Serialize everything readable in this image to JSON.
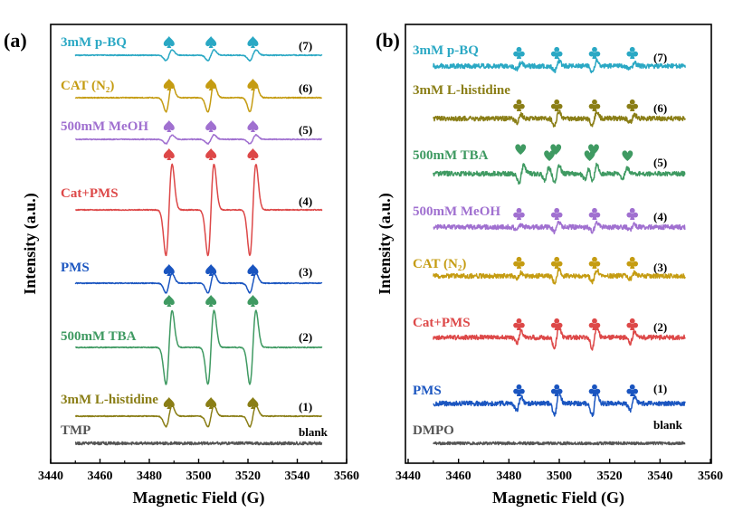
{
  "colors": {
    "cyan": "#2aa8c4",
    "olive": "#8a7e16",
    "gold": "#c59c12",
    "purple": "#a070d0",
    "red": "#dd4848",
    "blue": "#1a55c0",
    "green": "#3f9a62",
    "gray": "#555555"
  },
  "chart_data": [
    {
      "type": "line",
      "panel_label": "(a)",
      "xlabel": "Magnetic Field (G)",
      "ylabel": "Intensity (a.u.)",
      "xlim": [
        3440,
        3560
      ],
      "xticks": [
        "3440",
        "3460",
        "3480",
        "3500",
        "3520",
        "3540",
        "3560"
      ],
      "x_range_of_traces": [
        3450,
        3550
      ],
      "peak_positions": [
        3488,
        3505,
        3522
      ],
      "grid": false,
      "series": [
        {
          "label": "3mM p-BQ",
          "number": "(7)",
          "color": "#2aa8c4",
          "marker": "spade",
          "amplitude": 6
        },
        {
          "label": "CAT (N₂)",
          "number": "(6)",
          "color": "#c59c12",
          "marker": "spade",
          "amplitude": 16
        },
        {
          "label": "500mM MeOH",
          "number": "(5)",
          "color": "#a070d0",
          "marker": "spade",
          "amplitude": 5
        },
        {
          "label": "Cat+PMS",
          "number": "(4)",
          "color": "#dd4848",
          "marker": "spade",
          "amplitude": 52
        },
        {
          "label": "PMS",
          "number": "(3)",
          "color": "#1a55c0",
          "marker": "spade",
          "amplitude": 11
        },
        {
          "label": "500mM TBA",
          "number": "(2)",
          "color": "#3f9a62",
          "marker": "spade",
          "amplitude": 42
        },
        {
          "label": "3mM L-histidine",
          "number": "(1)",
          "color": "#8a7e16",
          "marker": "spade",
          "amplitude": 12
        },
        {
          "label": "TMP",
          "number": "blank",
          "color": "#555555",
          "marker": "",
          "amplitude": 0
        }
      ]
    },
    {
      "type": "line",
      "panel_label": "(b)",
      "xlabel": "Magnetic Field (G)",
      "ylabel": "Intensity (a.u.)",
      "xlim": [
        3440,
        3560
      ],
      "xticks": [
        "3440",
        "3460",
        "3480",
        "3500",
        "3520",
        "3540",
        "3560"
      ],
      "x_range_of_traces": [
        3450,
        3550
      ],
      "peak_positions": [
        3484,
        3499,
        3514,
        3529
      ],
      "grid": false,
      "series": [
        {
          "label": "3mM p-BQ",
          "number": "(7)",
          "color": "#2aa8c4",
          "marker": "club",
          "amplitude": 6
        },
        {
          "label": "3mM L-histidine",
          "number": "(6)",
          "color": "#8a7e16",
          "marker": "club",
          "amplitude": 8
        },
        {
          "label": "500mM TBA",
          "number": "(5)",
          "color": "#3f9a62",
          "marker": "heart",
          "amplitude": 10
        },
        {
          "label": "500mM MeOH",
          "number": "(4)",
          "color": "#a070d0",
          "marker": "club",
          "amplitude": 5
        },
        {
          "label": "CAT (N₂)",
          "number": "(3)",
          "color": "#c59c12",
          "marker": "club",
          "amplitude": 7
        },
        {
          "label": "Cat+PMS",
          "number": "(2)",
          "color": "#dd4848",
          "marker": "club",
          "amplitude": 12
        },
        {
          "label": "PMS",
          "number": "(1)",
          "color": "#1a55c0",
          "marker": "club",
          "amplitude": 14
        },
        {
          "label": "DMPO",
          "number": "blank",
          "color": "#555555",
          "marker": "",
          "amplitude": 0
        }
      ]
    }
  ]
}
